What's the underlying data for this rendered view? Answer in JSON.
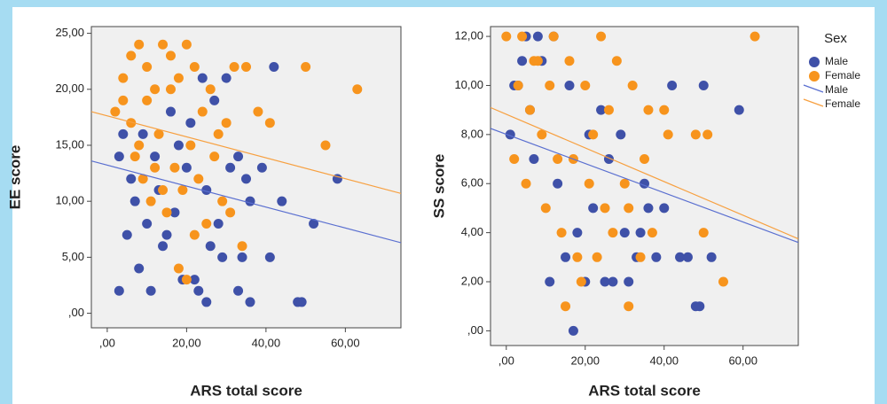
{
  "chart_data": [
    {
      "type": "scatter",
      "x_label": "ARS total score",
      "y_label": "EE score",
      "xlim": [
        -4,
        74
      ],
      "ylim": [
        -1.3,
        25.6
      ],
      "xticks": [
        {
          "value": 0,
          "label": ",00"
        },
        {
          "value": 20,
          "label": "20,00"
        },
        {
          "value": 40,
          "label": "40,00"
        },
        {
          "value": 60,
          "label": "60,00"
        }
      ],
      "yticks": [
        {
          "value": 0,
          "label": ",00"
        },
        {
          "value": 5,
          "label": "5,00"
        },
        {
          "value": 10,
          "label": "10,00"
        },
        {
          "value": 15,
          "label": "15,00"
        },
        {
          "value": 20,
          "label": "20,00"
        },
        {
          "value": 25,
          "label": "25,00"
        }
      ],
      "legend": false,
      "series": [
        {
          "name": "Male",
          "type": "scatter",
          "color": "#3f51a8",
          "x": [
            3,
            11,
            15,
            19,
            23,
            25,
            28,
            33,
            34,
            36,
            41,
            42,
            48,
            49,
            52,
            58,
            36,
            30,
            27,
            24,
            20,
            17,
            14,
            10,
            7,
            5,
            8,
            12,
            16,
            22,
            26,
            31,
            35,
            44,
            39,
            4,
            6,
            13,
            18,
            29,
            33,
            9,
            21,
            25,
            3
          ],
          "values": [
            2,
            2,
            7,
            3,
            2,
            1,
            8,
            2,
            5,
            1,
            5,
            22,
            1,
            1,
            8,
            12,
            10,
            21,
            19,
            21,
            13,
            9,
            6,
            8,
            10,
            7,
            4,
            14,
            18,
            3,
            6,
            13,
            12,
            10,
            13,
            16,
            12,
            11,
            15,
            5,
            14,
            16,
            17,
            11,
            14
          ]
        },
        {
          "name": "Female",
          "type": "scatter",
          "color": "#f7941d",
          "x": [
            2,
            4,
            6,
            8,
            10,
            12,
            14,
            16,
            18,
            20,
            22,
            24,
            26,
            28,
            30,
            32,
            35,
            38,
            41,
            50,
            55,
            63,
            7,
            9,
            11,
            13,
            15,
            17,
            19,
            21,
            23,
            25,
            27,
            29,
            31,
            34,
            4,
            6,
            8,
            10,
            12,
            14,
            16,
            18,
            20,
            22
          ],
          "values": [
            18,
            19,
            23,
            24,
            22,
            20,
            24,
            23,
            21,
            24,
            22,
            18,
            20,
            16,
            17,
            22,
            22,
            18,
            17,
            22,
            15,
            20,
            14,
            12,
            10,
            16,
            9,
            13,
            11,
            15,
            12,
            8,
            14,
            10,
            9,
            6,
            21,
            17,
            15,
            19,
            13,
            11,
            20,
            4,
            3,
            7
          ]
        },
        {
          "name": "Male",
          "type": "line",
          "color": "#5a6fd0",
          "x": [
            -4,
            74
          ],
          "values": [
            13.6,
            6.3
          ]
        },
        {
          "name": "Female",
          "type": "line",
          "color": "#f7a040",
          "x": [
            -4,
            74
          ],
          "values": [
            18.0,
            10.7
          ]
        }
      ]
    },
    {
      "type": "scatter",
      "x_label": "ARS total score",
      "y_label": "SS score",
      "xlim": [
        -4,
        74
      ],
      "ylim": [
        -0.6,
        12.4
      ],
      "xticks": [
        {
          "value": 0,
          "label": ",00"
        },
        {
          "value": 20,
          "label": "20,00"
        },
        {
          "value": 40,
          "label": "40,00"
        },
        {
          "value": 60,
          "label": "60,00"
        }
      ],
      "yticks": [
        {
          "value": 0,
          "label": ",00"
        },
        {
          "value": 2,
          "label": "2,00"
        },
        {
          "value": 4,
          "label": "4,00"
        },
        {
          "value": 6,
          "label": "6,00"
        },
        {
          "value": 8,
          "label": "8,00"
        },
        {
          "value": 10,
          "label": "10,00"
        },
        {
          "value": 12,
          "label": "12,00"
        }
      ],
      "legend": "right",
      "legend_title": "Sex",
      "series": [
        {
          "name": "Male",
          "type": "scatter",
          "color": "#3f51a8",
          "x": [
            17,
            49,
            48,
            50,
            59,
            42,
            36,
            35,
            52,
            33,
            27,
            31,
            25,
            20,
            11,
            8,
            5,
            4,
            3,
            2,
            6,
            9,
            12,
            15,
            18,
            22,
            26,
            29,
            34,
            38,
            44,
            46,
            16,
            13,
            21,
            24,
            30,
            40,
            1,
            7
          ],
          "values": [
            0,
            1,
            1,
            10,
            9,
            10,
            5,
            6,
            3,
            3,
            2,
            2,
            2,
            2,
            2,
            12,
            12,
            11,
            10,
            10,
            9,
            11,
            12,
            3,
            4,
            5,
            7,
            8,
            4,
            3,
            3,
            3,
            10,
            6,
            8,
            9,
            4,
            5,
            8,
            7
          ]
        },
        {
          "name": "Female",
          "type": "scatter",
          "color": "#f7941d",
          "x": [
            0,
            4,
            8,
            12,
            16,
            20,
            24,
            28,
            32,
            36,
            40,
            48,
            51,
            63,
            3,
            6,
            9,
            13,
            17,
            21,
            25,
            30,
            35,
            2,
            5,
            10,
            14,
            18,
            23,
            27,
            31,
            37,
            41,
            55,
            15,
            19,
            31,
            7,
            11,
            26,
            50,
            34,
            22
          ],
          "values": [
            12,
            12,
            11,
            12,
            11,
            10,
            12,
            11,
            10,
            9,
            9,
            8,
            8,
            12,
            10,
            9,
            8,
            7,
            7,
            6,
            5,
            6,
            7,
            7,
            6,
            5,
            4,
            3,
            3,
            4,
            5,
            4,
            8,
            2,
            1,
            2,
            1,
            11,
            10,
            9,
            4,
            3,
            8
          ]
        },
        {
          "name": "Male",
          "type": "line",
          "color": "#5a6fd0",
          "x": [
            -4,
            74
          ],
          "values": [
            8.25,
            3.6
          ]
        },
        {
          "name": "Female",
          "type": "line",
          "color": "#f7a040",
          "x": [
            -4,
            74
          ],
          "values": [
            9.1,
            3.75
          ]
        }
      ]
    }
  ]
}
